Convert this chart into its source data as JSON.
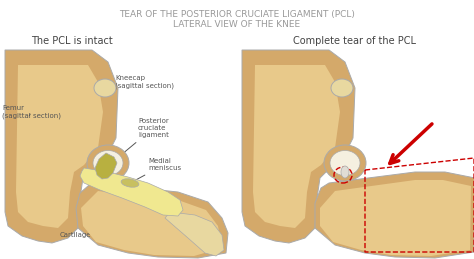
{
  "title_line1": "TEAR OF THE POSTERIOR CRUCIATE LIGAMENT (PCL)",
  "title_line2": "LATERAL VIEW OF THE KNEE",
  "subtitle_left": "The PCL is intact",
  "subtitle_right": "Complete tear of the PCL",
  "bg_color": "#ffffff",
  "title_color": "#999999",
  "subtitle_color": "#444444",
  "femur_color": "#d4a96a",
  "femur_inner_color": "#e8c98a",
  "bone_white": "#f5f0e0",
  "bone_cream": "#e8d8a0",
  "joint_space_color": "#f0e890",
  "arrow_color": "#cc0000",
  "dashed_color": "#cc0000",
  "label_color": "#555555",
  "outline_color": "#aaaaaa",
  "pcl_color": "#b8b040",
  "meniscus_color": "#c8c060"
}
